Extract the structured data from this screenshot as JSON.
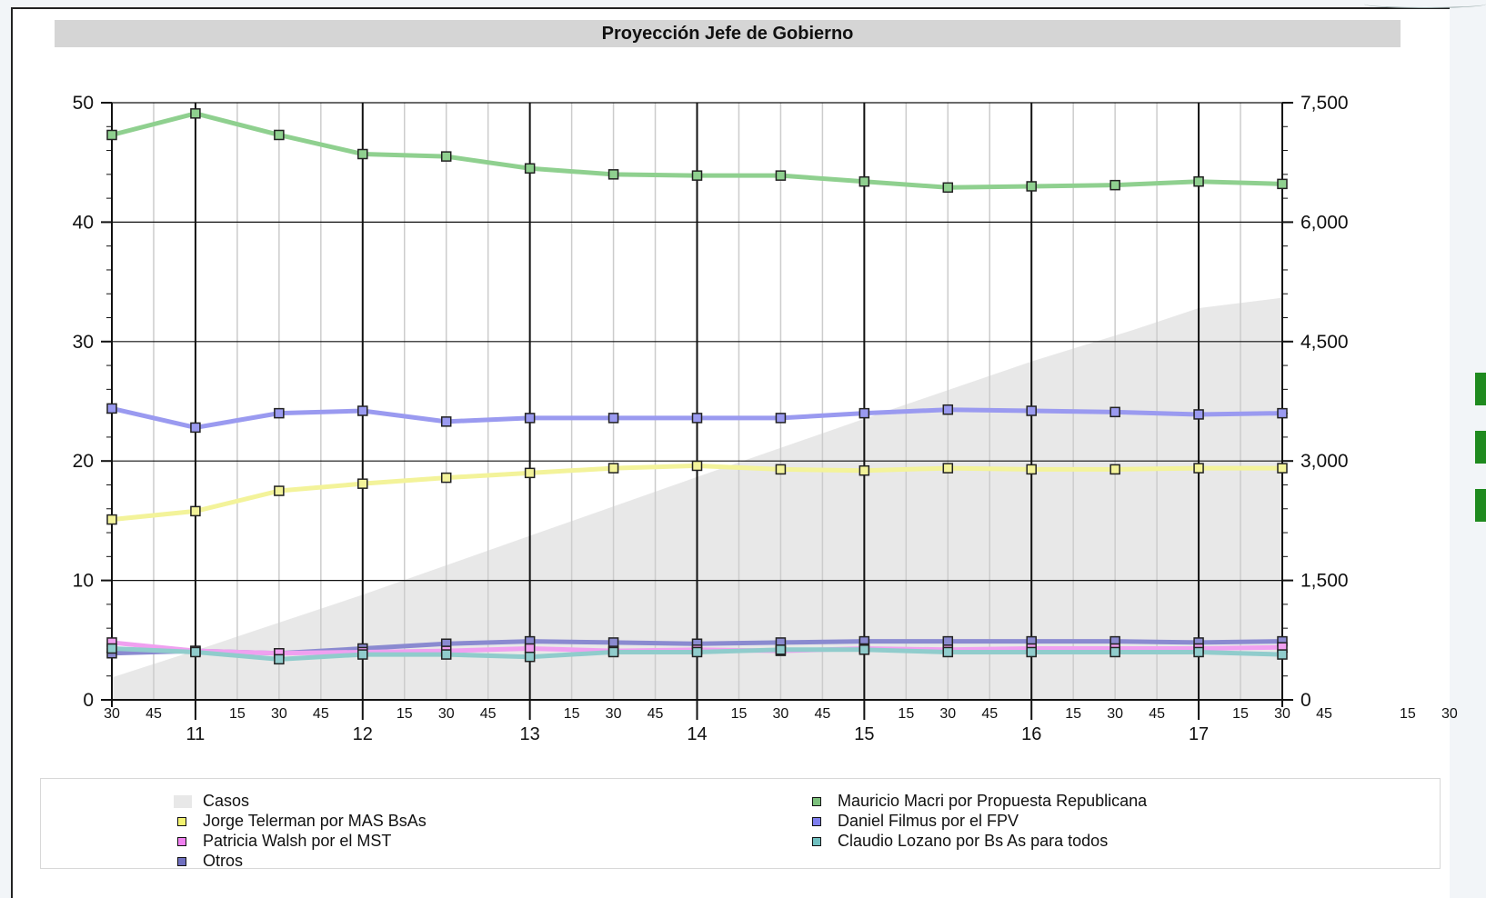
{
  "chart_data": {
    "type": "line",
    "title": "Proyección Jefe de Gobierno",
    "x_ticks_minor": [
      "30",
      "45",
      "15",
      "30",
      "45",
      "15",
      "30",
      "45",
      "15",
      "30",
      "45",
      "15",
      "30",
      "45",
      "15",
      "30",
      "45",
      "15",
      "30",
      "45",
      "15",
      "30",
      "45",
      "15",
      "30"
    ],
    "x_ticks_major": [
      "11",
      "12",
      "13",
      "14",
      "15",
      "16",
      "17"
    ],
    "y_left": {
      "ticks": [
        "0",
        "10",
        "20",
        "30",
        "40",
        "50"
      ],
      "range": [
        0,
        50
      ]
    },
    "y_right": {
      "ticks": [
        "0",
        "1,500",
        "3,000",
        "4,500",
        "6,000",
        "7,500"
      ],
      "range": [
        0,
        7500
      ]
    },
    "x_range_hours": [
      10.5,
      17.5
    ],
    "area": {
      "name": "Casos",
      "color": "#e8e8e8",
      "x": [
        10.5,
        11.0,
        12.0,
        13.0,
        14.0,
        15.0,
        16.0,
        16.6,
        17.0,
        17.5
      ],
      "y_right": [
        280,
        620,
        1320,
        2060,
        2800,
        3530,
        4250,
        4640,
        4920,
        5050
      ]
    },
    "series": [
      {
        "name": "Mauricio Macri por Propuesta Republicana",
        "color": "#8fd08f",
        "x": [
          10.5,
          11.0,
          11.5,
          12.0,
          12.5,
          13.0,
          13.5,
          14.0,
          14.5,
          15.0,
          15.5,
          16.0,
          16.5,
          17.0,
          17.5
        ],
        "values": [
          47.3,
          49.1,
          47.3,
          45.7,
          45.5,
          44.5,
          44.0,
          43.9,
          43.9,
          43.4,
          42.9,
          43.0,
          43.1,
          43.4,
          43.2
        ]
      },
      {
        "name": "Daniel Filmus por el FPV",
        "color": "#9a9af0",
        "x": [
          10.5,
          11.0,
          11.5,
          12.0,
          12.5,
          13.0,
          13.5,
          14.0,
          14.5,
          15.0,
          15.5,
          16.0,
          16.5,
          17.0,
          17.5
        ],
        "values": [
          24.4,
          22.8,
          24.0,
          24.2,
          23.3,
          23.6,
          23.6,
          23.6,
          23.6,
          24.0,
          24.3,
          24.2,
          24.1,
          23.9,
          24.0
        ]
      },
      {
        "name": "Jorge Telerman por MAS BsAs",
        "color": "#f3f39a",
        "x": [
          10.5,
          11.0,
          11.5,
          12.0,
          12.5,
          13.0,
          13.5,
          14.0,
          14.5,
          15.0,
          15.5,
          16.0,
          16.5,
          17.0,
          17.5
        ],
        "values": [
          15.1,
          15.8,
          17.5,
          18.1,
          18.6,
          19.0,
          19.4,
          19.6,
          19.3,
          19.2,
          19.4,
          19.3,
          19.3,
          19.4,
          19.4
        ]
      },
      {
        "name": "Otros",
        "color": "#8a8ad0",
        "x": [
          10.5,
          11.0,
          11.5,
          12.0,
          12.5,
          13.0,
          13.5,
          14.0,
          14.5,
          15.0,
          15.5,
          16.0,
          16.5,
          17.0,
          17.5
        ],
        "values": [
          3.9,
          4.1,
          3.9,
          4.3,
          4.7,
          4.9,
          4.8,
          4.7,
          4.8,
          4.9,
          4.9,
          4.9,
          4.9,
          4.8,
          4.9
        ]
      },
      {
        "name": "Patricia Walsh por el MST",
        "color": "#f0a0f0",
        "x": [
          10.5,
          11.0,
          11.5,
          12.0,
          12.5,
          13.0,
          13.5,
          14.0,
          14.5,
          15.0,
          15.5,
          16.0,
          16.5,
          17.0,
          17.5
        ],
        "values": [
          4.8,
          4.1,
          3.9,
          4.0,
          4.1,
          4.3,
          4.1,
          4.2,
          4.1,
          4.3,
          4.2,
          4.3,
          4.3,
          4.3,
          4.4
        ]
      },
      {
        "name": "Claudio Lozano por Bs As para todos",
        "color": "#90cccc",
        "x": [
          10.5,
          11.0,
          11.5,
          12.0,
          12.5,
          13.0,
          13.5,
          14.0,
          14.5,
          15.0,
          15.5,
          16.0,
          16.5,
          17.0,
          17.5
        ],
        "values": [
          4.3,
          4.0,
          3.4,
          3.8,
          3.8,
          3.6,
          4.0,
          4.0,
          4.2,
          4.2,
          4.0,
          4.0,
          4.0,
          4.0,
          3.8
        ]
      }
    ],
    "legend": {
      "placement": "bottom",
      "entries": [
        {
          "label": "Casos",
          "color": "#e8e8e8",
          "kind": "area"
        },
        {
          "label": "Mauricio Macri por Propuesta Republicana",
          "color": "#7cc07c",
          "kind": "marker"
        },
        {
          "label": "Jorge Telerman por MAS BsAs",
          "color": "#f3f370",
          "kind": "marker"
        },
        {
          "label": "Daniel Filmus por el FPV",
          "color": "#7f7ff0",
          "kind": "marker"
        },
        {
          "label": "Patricia Walsh por el MST",
          "color": "#f080f0",
          "kind": "marker"
        },
        {
          "label": "Claudio Lozano por Bs As para todos",
          "color": "#70c0c0",
          "kind": "marker"
        },
        {
          "label": "Otros",
          "color": "#7070c0",
          "kind": "marker"
        }
      ]
    },
    "grid": true
  }
}
